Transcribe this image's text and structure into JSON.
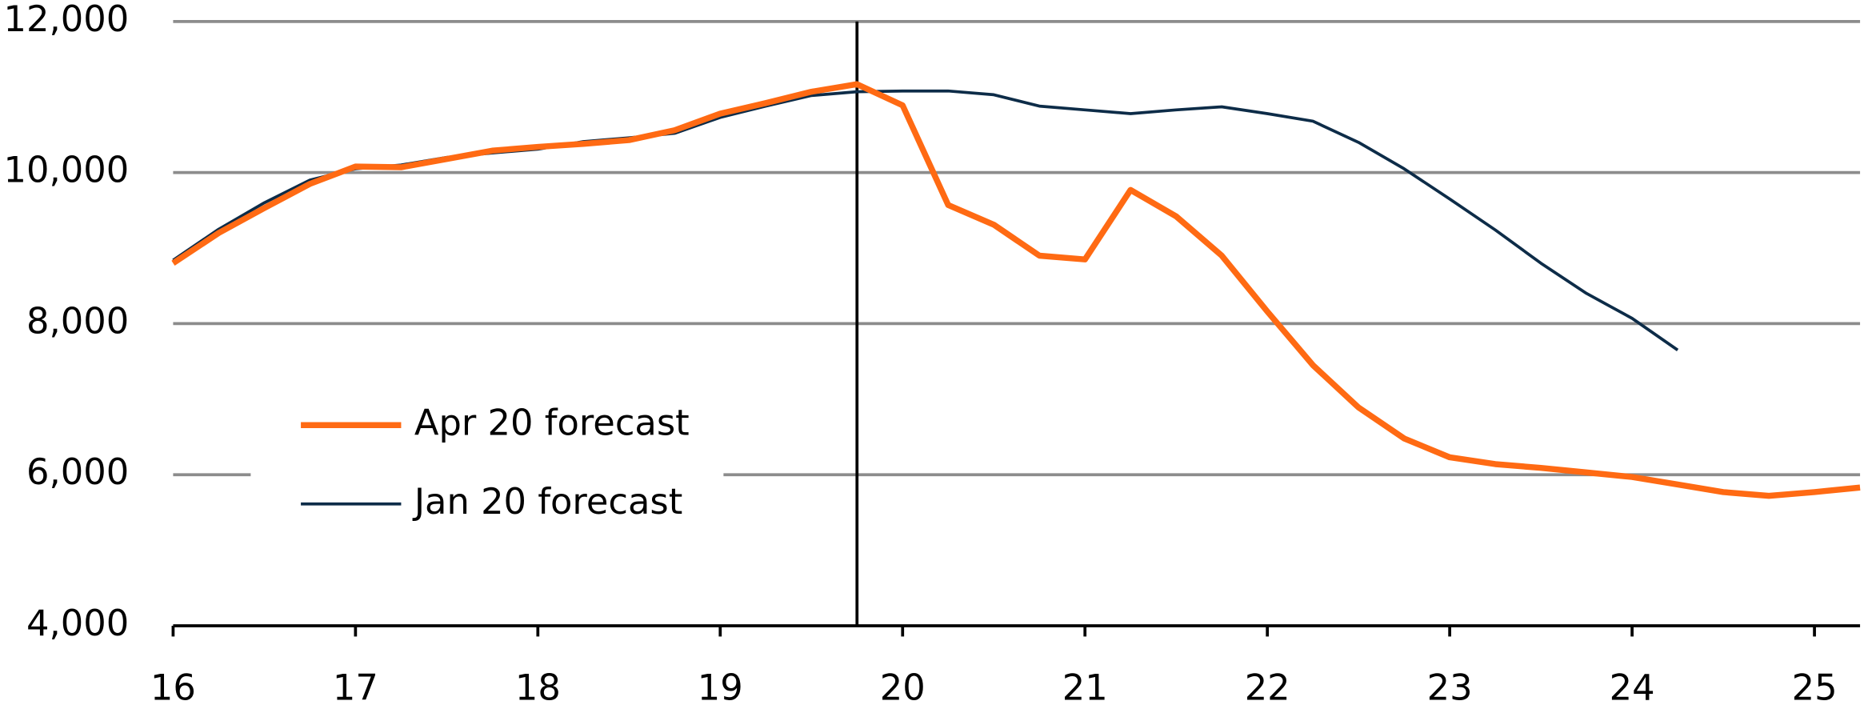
{
  "chart_data": {
    "type": "line",
    "x": [
      16,
      16.25,
      16.5,
      16.75,
      17,
      17.25,
      17.5,
      17.75,
      18,
      18.25,
      18.5,
      18.75,
      19,
      19.25,
      19.5,
      19.75,
      20,
      20.25,
      20.5,
      20.75,
      21,
      21.25,
      21.5,
      21.75,
      22,
      22.25,
      22.5,
      22.75,
      23,
      23.25,
      23.5,
      23.75,
      24,
      24.25,
      24.5,
      24.75,
      25,
      25.25
    ],
    "series": [
      {
        "name": "Apr 20 forecast",
        "color": "#ff6a13",
        "values": [
          8800,
          9200,
          9530,
          9850,
          10080,
          10070,
          10180,
          10290,
          10340,
          10380,
          10430,
          10560,
          10780,
          10920,
          11070,
          11170,
          10890,
          9570,
          9310,
          8900,
          8850,
          9770,
          9420,
          8900,
          8160,
          7450,
          6890,
          6480,
          6230,
          6140,
          6090,
          6030,
          5970,
          5870,
          5770,
          5720,
          5770,
          5830
        ]
      },
      {
        "name": "Jan 20 forecast",
        "color": "#0d2c48",
        "values": [
          8840,
          9250,
          9600,
          9900,
          10050,
          10100,
          10200,
          10260,
          10310,
          10410,
          10460,
          10520,
          10730,
          10880,
          11020,
          11070,
          11080,
          11080,
          11030,
          10880,
          10830,
          10780,
          10830,
          10870,
          10780,
          10680,
          10400,
          10050,
          9650,
          9240,
          8800,
          8400,
          8070,
          7650,
          null,
          null,
          null,
          null
        ]
      }
    ],
    "xlim": [
      16,
      25.25
    ],
    "xticks": [
      16,
      17,
      18,
      19,
      20,
      21,
      22,
      23,
      24,
      25
    ],
    "ylim": [
      4000,
      12000
    ],
    "yticks": [
      {
        "value": 4000,
        "label": "4,000"
      },
      {
        "value": 6000,
        "label": "6,000"
      },
      {
        "value": 8000,
        "label": "8,000"
      },
      {
        "value": 10000,
        "label": "10,000"
      },
      {
        "value": 12000,
        "label": "12,000"
      }
    ],
    "vline": 19.75,
    "grid": true,
    "legend": "left"
  }
}
